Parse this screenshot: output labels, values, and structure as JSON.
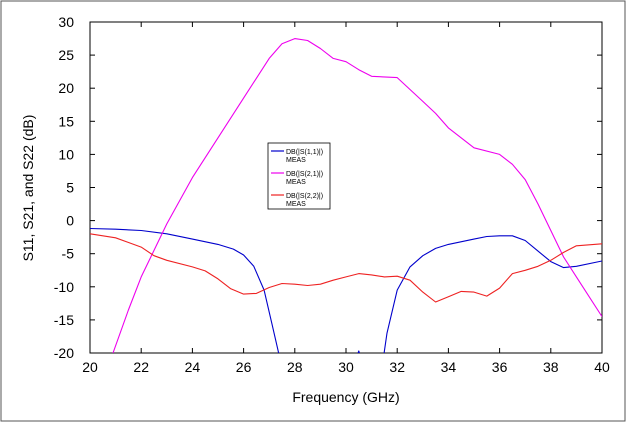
{
  "chart_data": {
    "type": "line",
    "xlabel": "Frequency (GHz)",
    "ylabel": "S11, S21, and S22 (dB)",
    "xlim": [
      20,
      40
    ],
    "ylim": [
      -20,
      30
    ],
    "xticks": [
      "20",
      "22",
      "24",
      "26",
      "28",
      "30",
      "32",
      "34",
      "36",
      "38",
      "40"
    ],
    "yticks": [
      "30",
      "25",
      "20",
      "15",
      "10",
      "5",
      "0",
      "-5",
      "-10",
      "-15",
      "-20"
    ],
    "grid": false,
    "legend_position": "center",
    "series": [
      {
        "name": "DB(|S(1,1)|)",
        "legend_sub": "MEAS",
        "color": "#0000cc",
        "x": [
          20,
          21,
          22,
          23,
          24,
          25,
          25.6,
          26,
          26.4,
          26.8,
          27.1,
          27.4,
          27.6,
          30,
          30.5,
          30.6,
          30.8,
          31.3,
          31.6,
          32,
          32.5,
          33,
          33.5,
          34,
          35,
          35.5,
          36,
          36.5,
          37,
          37.5,
          38,
          38.5,
          39,
          40
        ],
        "y": [
          -1.2,
          -1.3,
          -1.5,
          -2.0,
          -2.8,
          -3.6,
          -4.3,
          -5.2,
          -6.9,
          -10.5,
          -15.5,
          -20.5,
          -25,
          -25,
          -19.7,
          -21,
          -25,
          -25,
          -17,
          -10.5,
          -7.0,
          -5.3,
          -4.2,
          -3.6,
          -2.8,
          -2.4,
          -2.3,
          -2.3,
          -3.0,
          -4.6,
          -6.2,
          -7.1,
          -6.9,
          -6.1
        ]
      },
      {
        "name": "DB(|S(2,1)|)",
        "legend_sub": "MEAS",
        "color": "#ee00ee",
        "x": [
          20.9,
          21.5,
          22,
          23,
          24,
          25,
          26,
          27,
          27.5,
          28,
          28.5,
          29,
          29.5,
          30,
          30.5,
          31,
          32,
          33,
          33.5,
          34,
          35,
          36,
          36.5,
          37,
          37.5,
          38,
          38.5,
          39,
          40
        ],
        "y": [
          -20,
          -13.5,
          -8.5,
          -0.5,
          6.5,
          12.5,
          18.5,
          24.5,
          26.7,
          27.5,
          27.2,
          26.0,
          24.5,
          24.0,
          22.8,
          21.8,
          21.6,
          18.0,
          16.2,
          14.0,
          11.0,
          10.0,
          8.5,
          6.2,
          2.5,
          -1.5,
          -5.5,
          -8.5,
          -14.5
        ]
      },
      {
        "name": "DB(|S(2,2)|)",
        "legend_sub": "MEAS",
        "color": "#ee2222",
        "x": [
          20,
          21,
          22,
          22.5,
          23,
          24,
          24.5,
          25,
          25.5,
          26,
          26.5,
          27,
          27.5,
          28,
          28.5,
          29,
          29.5,
          30,
          30.5,
          31,
          31.5,
          32,
          32.5,
          33,
          33.5,
          34,
          34.5,
          35,
          35.5,
          36,
          36.5,
          37,
          37.5,
          38,
          38.5,
          39,
          40
        ],
        "y": [
          -2.0,
          -2.6,
          -4.0,
          -5.3,
          -6.0,
          -7.0,
          -7.6,
          -8.8,
          -10.3,
          -11.1,
          -11.0,
          -10.1,
          -9.5,
          -9.6,
          -9.8,
          -9.6,
          -9.0,
          -8.5,
          -8.0,
          -8.2,
          -8.5,
          -8.4,
          -9.0,
          -10.8,
          -12.3,
          -11.5,
          -10.7,
          -10.8,
          -11.4,
          -10.2,
          -8.0,
          -7.5,
          -6.9,
          -6.0,
          -4.8,
          -3.8,
          -3.5
        ]
      }
    ]
  }
}
